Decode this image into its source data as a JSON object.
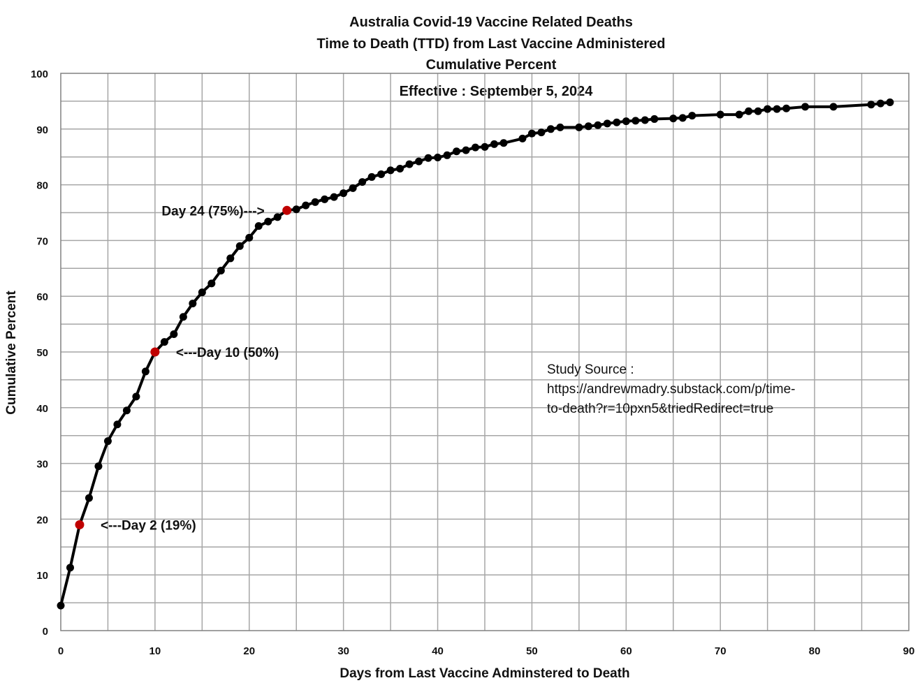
{
  "chart_data": {
    "type": "line",
    "title": [
      "Australia Covid-19 Vaccine Related Deaths",
      "Time to Death (TTD) from Last Vaccine Administered",
      "Cumulative Percent"
    ],
    "subtitle": "Effective : September 5, 2024",
    "xlabel": "Days from Last Vaccine Adminstered to Death",
    "ylabel": "Cumulative Percent",
    "xlim": [
      0,
      90
    ],
    "ylim": [
      0,
      100
    ],
    "xticks": [
      0,
      10,
      20,
      30,
      40,
      50,
      60,
      70,
      80,
      90
    ],
    "yticks": [
      0,
      10,
      20,
      30,
      40,
      50,
      60,
      70,
      80,
      90,
      100
    ],
    "grid": true,
    "legend": "none",
    "series": [
      {
        "color": "#000000",
        "points": [
          [
            0,
            4.5
          ],
          [
            1,
            11.3
          ],
          [
            2,
            19.0
          ],
          [
            3,
            23.8
          ],
          [
            4,
            29.5
          ],
          [
            5,
            34.0
          ],
          [
            6,
            37.0
          ],
          [
            7,
            39.5
          ],
          [
            8,
            42.0
          ],
          [
            9,
            46.5
          ],
          [
            10,
            50.0
          ],
          [
            11,
            51.8
          ],
          [
            12,
            53.2
          ],
          [
            13,
            56.3
          ],
          [
            14,
            58.7
          ],
          [
            15,
            60.7
          ],
          [
            16,
            62.3
          ],
          [
            17,
            64.6
          ],
          [
            18,
            66.8
          ],
          [
            19,
            69.0
          ],
          [
            20,
            70.5
          ],
          [
            21,
            72.6
          ],
          [
            22,
            73.4
          ],
          [
            23,
            74.2
          ],
          [
            24,
            75.4
          ],
          [
            25,
            75.6
          ],
          [
            26,
            76.3
          ],
          [
            27,
            76.9
          ],
          [
            28,
            77.4
          ],
          [
            29,
            77.8
          ],
          [
            30,
            78.5
          ],
          [
            31,
            79.4
          ],
          [
            32,
            80.5
          ],
          [
            33,
            81.4
          ],
          [
            34,
            81.9
          ],
          [
            35,
            82.6
          ],
          [
            36,
            82.9
          ],
          [
            37,
            83.7
          ],
          [
            38,
            84.2
          ],
          [
            39,
            84.8
          ],
          [
            40,
            84.9
          ],
          [
            41,
            85.3
          ],
          [
            42,
            86.0
          ],
          [
            43,
            86.2
          ],
          [
            44,
            86.7
          ],
          [
            45,
            86.8
          ],
          [
            46,
            87.3
          ],
          [
            47,
            87.5
          ],
          [
            49,
            88.3
          ],
          [
            50,
            89.2
          ],
          [
            51,
            89.4
          ],
          [
            52,
            90.0
          ],
          [
            53,
            90.3
          ],
          [
            55,
            90.3
          ],
          [
            56,
            90.5
          ],
          [
            57,
            90.7
          ],
          [
            58,
            91.0
          ],
          [
            59,
            91.2
          ],
          [
            60,
            91.4
          ],
          [
            61,
            91.5
          ],
          [
            62,
            91.6
          ],
          [
            63,
            91.8
          ],
          [
            65,
            91.9
          ],
          [
            66,
            92.0
          ],
          [
            67,
            92.4
          ],
          [
            70,
            92.6
          ],
          [
            72,
            92.6
          ],
          [
            73,
            93.2
          ],
          [
            74,
            93.2
          ],
          [
            75,
            93.6
          ],
          [
            76,
            93.6
          ],
          [
            77,
            93.7
          ],
          [
            79,
            94.0
          ],
          [
            82,
            94.0
          ],
          [
            86,
            94.4
          ],
          [
            87,
            94.6
          ],
          [
            88,
            94.8
          ]
        ]
      }
    ],
    "highlighted_points": [
      {
        "x": 2,
        "y": 19,
        "color": "#c00000",
        "label": "<---Day 2  (19%)",
        "label_side": "right"
      },
      {
        "x": 10,
        "y": 50,
        "color": "#c00000",
        "label": "<---Day 10  (50%)",
        "label_side": "right"
      },
      {
        "x": 24,
        "y": 75.4,
        "color": "#c00000",
        "label": "Day 24  (75%)--->",
        "label_side": "left"
      }
    ],
    "source_note": [
      "Study Source :",
      "https://andrewmadry.substack.com/p/time-",
      "to-death?r=10pxn5&triedRedirect=true"
    ]
  }
}
